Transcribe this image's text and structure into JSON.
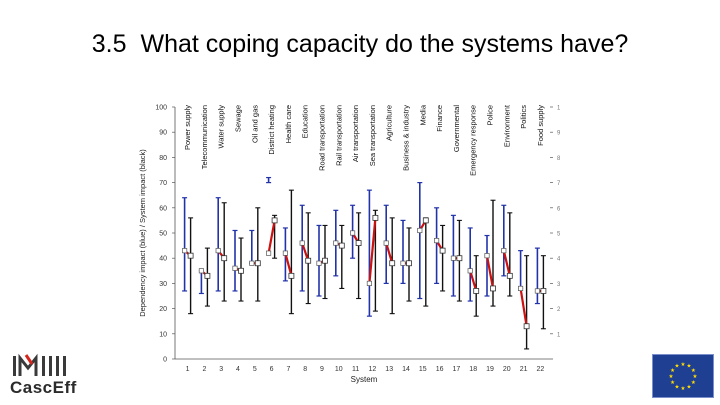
{
  "slide": {
    "number": "3.5",
    "title": "What coping capacity do the systems have?"
  },
  "logo": {
    "text": "CascEff"
  },
  "eu_flag": {
    "icon": "eu-flag-icon",
    "background": "#1f3f93",
    "star_color": "#ffdd00"
  },
  "colors": {
    "blue": "#2233aa",
    "red": "#cc1111",
    "black": "#111111",
    "gray": "#777777"
  },
  "chart_data": {
    "type": "box-range",
    "title": "",
    "xlabel": "System",
    "ylabel": "Dependency impact (blue) / System impact (black)",
    "ylim": [
      0,
      100
    ],
    "yticks": [
      0,
      10,
      20,
      30,
      40,
      50,
      60,
      70,
      80,
      90,
      100
    ],
    "categories": [
      "1",
      "2",
      "3",
      "4",
      "5",
      "6",
      "7",
      "8",
      "9",
      "10",
      "11",
      "12",
      "13",
      "14",
      "15",
      "16",
      "17",
      "18",
      "19",
      "20",
      "21",
      "22"
    ],
    "system_names": [
      "Power supply",
      "Telecommunication",
      "Water supply",
      "Sewage",
      "Oil and gas",
      "District heating",
      "Health care",
      "Education",
      "Road transportation",
      "Rail transportation",
      "Air transportation",
      "Sea transportation",
      "Agriculture",
      "Business & industry",
      "Media",
      "Finance",
      "Governmental",
      "Emergency response",
      "Police",
      "Environment",
      "Politics",
      "Food supply"
    ],
    "series": [
      {
        "name": "Dependency impact (blue)",
        "color": "blue",
        "min": [
          27,
          26,
          27,
          27,
          38,
          70,
          31,
          27,
          25,
          33,
          40,
          17,
          30,
          30,
          24,
          30,
          25,
          23,
          25,
          33,
          28,
          22
        ],
        "max": [
          64,
          35,
          64,
          51,
          51,
          72,
          52,
          61,
          53,
          59,
          61,
          67,
          61,
          55,
          70,
          60,
          57,
          52,
          49,
          61,
          43,
          44
        ],
        "marker": [
          43,
          35,
          43,
          36,
          38,
          42,
          42,
          46,
          38,
          46,
          50,
          30,
          46,
          38,
          51,
          47,
          40,
          35,
          41,
          43,
          28,
          27
        ]
      },
      {
        "name": "System impact (black)",
        "color": "black",
        "min": [
          18,
          21,
          23,
          23,
          23,
          40,
          18,
          22,
          24,
          28,
          24,
          19,
          18,
          23,
          21,
          27,
          23,
          17,
          21,
          25,
          4,
          12
        ],
        "max": [
          56,
          44,
          62,
          48,
          60,
          57,
          67,
          58,
          53,
          53,
          58,
          59,
          56,
          52,
          56,
          53,
          55,
          41,
          63,
          58,
          41,
          41
        ],
        "marker": [
          41,
          33,
          40,
          35,
          38,
          55,
          33,
          39,
          39,
          45,
          46,
          56,
          38,
          38,
          55,
          43,
          40,
          27,
          28,
          33,
          13,
          27
        ]
      }
    ]
  }
}
